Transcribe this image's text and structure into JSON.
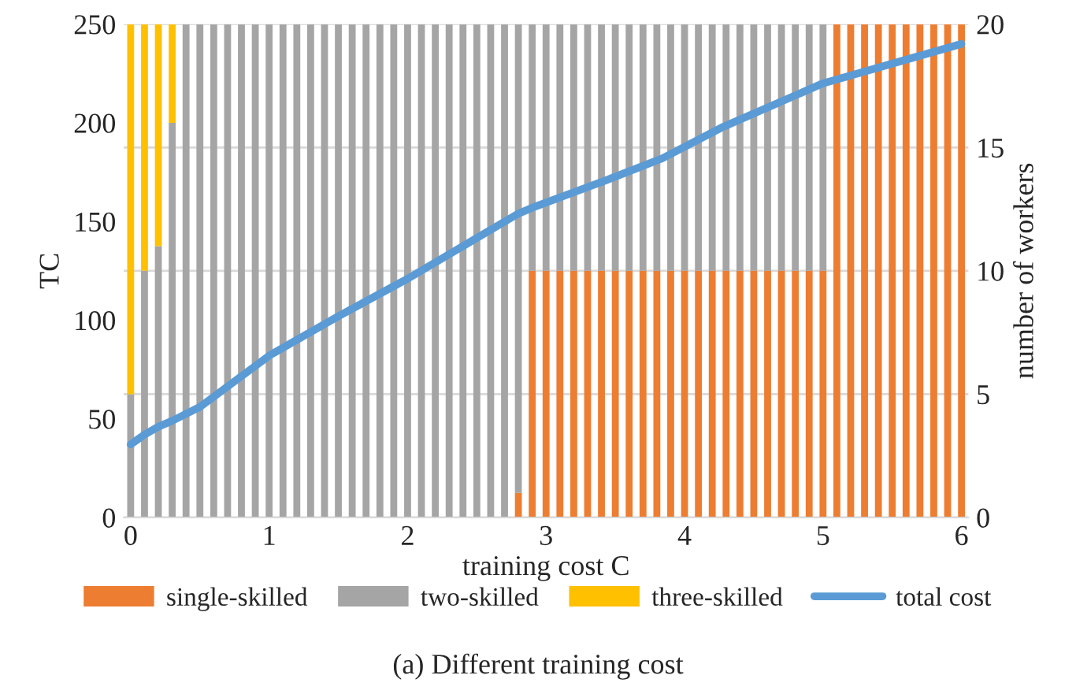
{
  "chart_data": {
    "type": "bar",
    "stacked": true,
    "xlabel": "training cost C",
    "ylabel": "TC",
    "y2label": "number of workers",
    "x": [
      0,
      0.1,
      0.2,
      0.3,
      0.4,
      0.5,
      0.6,
      0.7,
      0.8,
      0.9,
      1,
      1.1,
      1.2,
      1.3,
      1.4,
      1.5,
      1.6,
      1.7,
      1.8,
      1.9,
      2,
      2.1,
      2.2,
      2.3,
      2.4,
      2.5,
      2.6,
      2.7,
      2.8,
      2.9,
      3,
      3.1,
      3.2,
      3.3,
      3.4,
      3.5,
      3.6,
      3.7,
      3.8,
      3.9,
      4,
      4.1,
      4.2,
      4.3,
      4.4,
      4.5,
      4.6,
      4.7,
      4.8,
      4.9,
      5,
      5.1,
      5.2,
      5.3,
      5.4,
      5.5,
      5.6,
      5.7,
      5.8,
      5.9,
      6
    ],
    "series": [
      {
        "name": "single-skilled",
        "color": "#ed7d31",
        "axis": "y2",
        "values": [
          0,
          0,
          0,
          0,
          0,
          0,
          0,
          0,
          0,
          0,
          0,
          0,
          0,
          0,
          0,
          0,
          0,
          0,
          0,
          0,
          0,
          0,
          0,
          0,
          0,
          0,
          0,
          0,
          1,
          10,
          10,
          10,
          10,
          10,
          10,
          10,
          10,
          10,
          10,
          10,
          10,
          10,
          10,
          10,
          10,
          10,
          10,
          10,
          10,
          10,
          10,
          20,
          20,
          20,
          20,
          20,
          20,
          20,
          20,
          20,
          20
        ]
      },
      {
        "name": "two-skilled",
        "color": "#a5a5a5",
        "axis": "y2",
        "values": [
          5,
          10,
          11,
          16,
          20,
          20,
          20,
          20,
          20,
          20,
          20,
          20,
          20,
          20,
          20,
          20,
          20,
          20,
          20,
          20,
          20,
          20,
          20,
          20,
          20,
          20,
          20,
          20,
          19,
          10,
          10,
          10,
          10,
          10,
          10,
          10,
          10,
          10,
          10,
          10,
          10,
          10,
          10,
          10,
          10,
          10,
          10,
          10,
          10,
          10,
          10,
          0,
          0,
          0,
          0,
          0,
          0,
          0,
          0,
          0,
          0
        ]
      },
      {
        "name": "three-skilled",
        "color": "#ffc000",
        "axis": "y2",
        "values": [
          15,
          10,
          9,
          4,
          0,
          0,
          0,
          0,
          0,
          0,
          0,
          0,
          0,
          0,
          0,
          0,
          0,
          0,
          0,
          0,
          0,
          0,
          0,
          0,
          0,
          0,
          0,
          0,
          0,
          0,
          0,
          0,
          0,
          0,
          0,
          0,
          0,
          0,
          0,
          0,
          0,
          0,
          0,
          0,
          0,
          0,
          0,
          0,
          0,
          0,
          0,
          0,
          0,
          0,
          0,
          0,
          0,
          0,
          0,
          0,
          0
        ]
      },
      {
        "name": "total cost",
        "type": "line",
        "color": "#5b9bd5",
        "axis": "y",
        "x": [
          0,
          0.1,
          0.2,
          0.3,
          0.5,
          1,
          1.5,
          2,
          2.46,
          2.8,
          2.9,
          3.4,
          3.84,
          4.28,
          5,
          5.5,
          6
        ],
        "values": [
          37,
          42,
          46,
          49,
          56,
          82,
          102,
          121,
          140,
          154,
          157,
          170,
          182,
          198,
          220,
          230,
          240
        ]
      }
    ],
    "xlim": [
      -0.05,
      6.05
    ],
    "xticks": [
      0,
      1,
      2,
      3,
      4,
      5,
      6
    ],
    "ylim": [
      0,
      250
    ],
    "yticks": [
      0,
      50,
      100,
      150,
      200,
      250
    ],
    "y2lim": [
      0,
      20
    ],
    "y2ticks": [
      0,
      5,
      10,
      15,
      20
    ],
    "grid": "y",
    "legend": "bottom",
    "annotations": [
      "(a) Different training cost"
    ]
  }
}
